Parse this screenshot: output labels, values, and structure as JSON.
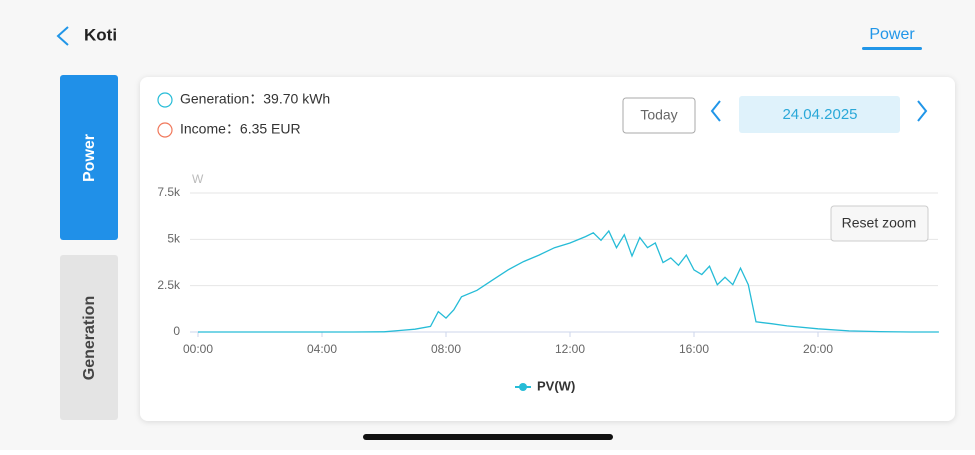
{
  "header": {
    "back_title": "Koti",
    "tab": "Power"
  },
  "sidebar": {
    "tabs": [
      "Power",
      "Generation"
    ]
  },
  "summary": {
    "generation": "Generation：39.70 kWh",
    "income": "Income：6.35 EUR"
  },
  "date_nav": {
    "today": "Today",
    "date": "24.04.2025"
  },
  "reset_zoom": "Reset zoom",
  "chart_data": {
    "type": "line",
    "y_unit": "W",
    "x": [
      0,
      1,
      2,
      3,
      4,
      5,
      6,
      6.5,
      7,
      7.5,
      7.75,
      8,
      8.25,
      8.5,
      9,
      9.5,
      10,
      10.5,
      11,
      11.5,
      12,
      12.5,
      12.75,
      13,
      13.25,
      13.5,
      13.75,
      14,
      14.25,
      14.5,
      14.75,
      15,
      15.25,
      15.5,
      15.75,
      16,
      16.25,
      16.5,
      16.75,
      17,
      17.25,
      17.5,
      17.75,
      18,
      18.5,
      19,
      20,
      21,
      22,
      23,
      23.9
    ],
    "series": [
      {
        "name": "PV(W)",
        "color": "#26bcd7",
        "values": [
          0,
          0,
          0,
          0,
          0,
          0,
          10,
          80,
          150,
          300,
          1100,
          750,
          1200,
          1900,
          2250,
          2800,
          3350,
          3800,
          4150,
          4550,
          4800,
          5150,
          5350,
          4950,
          5450,
          4550,
          5250,
          4100,
          5100,
          4550,
          4800,
          3750,
          4000,
          3600,
          4150,
          3350,
          3100,
          3550,
          2550,
          2950,
          2550,
          3450,
          2550,
          550,
          450,
          330,
          170,
          60,
          20,
          0,
          0
        ]
      }
    ],
    "xlim": [
      0,
      24
    ],
    "xticks": [
      {
        "value": 0,
        "label": "00:00"
      },
      {
        "value": 4,
        "label": "04:00"
      },
      {
        "value": 8,
        "label": "08:00"
      },
      {
        "value": 12,
        "label": "12:00"
      },
      {
        "value": 16,
        "label": "16:00"
      },
      {
        "value": 20,
        "label": "20:00"
      }
    ],
    "ylim": [
      0,
      7500
    ],
    "yticks": [
      0,
      {
        "value": 2500,
        "label": "2.5k"
      },
      {
        "value": 5000,
        "label": "5k"
      },
      {
        "value": 7500,
        "label": "7.5k"
      }
    ],
    "grid": true,
    "legend": "bottom"
  }
}
